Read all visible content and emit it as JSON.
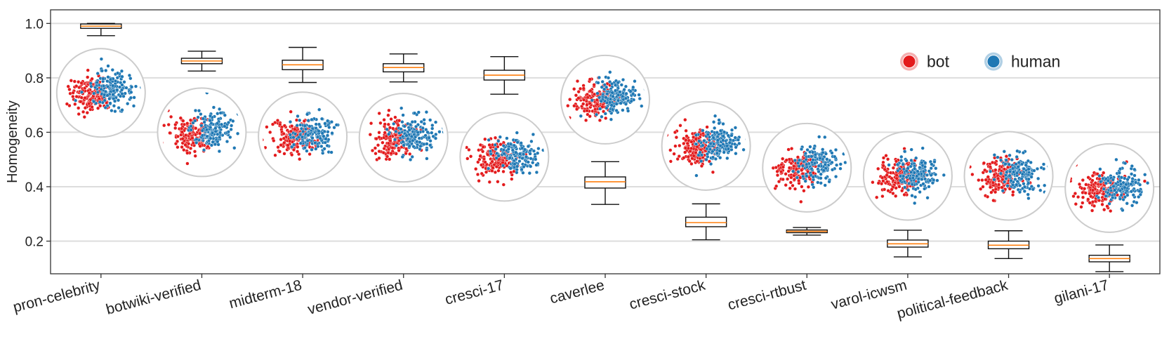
{
  "chart_data": {
    "type": "box",
    "ylabel": "Homogeneity",
    "ylim": [
      0.08,
      1.05
    ],
    "yticks": [
      "0.2",
      "0.4",
      "0.6",
      "0.8",
      "1.0"
    ],
    "ytick_values": [
      0.2,
      0.4,
      0.6,
      0.8,
      1.0
    ],
    "grid": "horizontal",
    "legend": {
      "placement": "top-right",
      "entries": [
        {
          "name": "bot",
          "color": "#e31a1c"
        },
        {
          "name": "human",
          "color": "#1f78b4"
        }
      ]
    },
    "categories": [
      "pron-celebrity",
      "botwiki-verified",
      "midterm-18",
      "vendor-verified",
      "cresci-17",
      "caverlee",
      "cresci-stock",
      "cresci-rtbust",
      "varol-icwsm",
      "political-feedback",
      "gilani-17"
    ],
    "boxes": [
      {
        "whislo": 0.955,
        "q1": 0.982,
        "med": 0.99,
        "q3": 0.998,
        "whishi": 1.0
      },
      {
        "whislo": 0.825,
        "q1": 0.852,
        "med": 0.862,
        "q3": 0.872,
        "whishi": 0.898
      },
      {
        "whislo": 0.783,
        "q1": 0.83,
        "med": 0.848,
        "q3": 0.865,
        "whishi": 0.912
      },
      {
        "whislo": 0.785,
        "q1": 0.822,
        "med": 0.838,
        "q3": 0.852,
        "whishi": 0.888
      },
      {
        "whislo": 0.74,
        "q1": 0.792,
        "med": 0.81,
        "q3": 0.828,
        "whishi": 0.878
      },
      {
        "whislo": 0.335,
        "q1": 0.395,
        "med": 0.418,
        "q3": 0.436,
        "whishi": 0.492
      },
      {
        "whislo": 0.205,
        "q1": 0.253,
        "med": 0.268,
        "q3": 0.288,
        "whishi": 0.337
      },
      {
        "whislo": 0.222,
        "q1": 0.231,
        "med": 0.236,
        "q3": 0.241,
        "whishi": 0.25
      },
      {
        "whislo": 0.142,
        "q1": 0.178,
        "med": 0.19,
        "q3": 0.204,
        "whishi": 0.24
      },
      {
        "whislo": 0.136,
        "q1": 0.172,
        "med": 0.185,
        "q3": 0.2,
        "whishi": 0.238
      },
      {
        "whislo": 0.088,
        "q1": 0.124,
        "med": 0.136,
        "q3": 0.148,
        "whishi": 0.186
      }
    ],
    "embedding_insets": [
      {
        "center_y": 0.745
      },
      {
        "center_y": 0.6
      },
      {
        "center_y": 0.585
      },
      {
        "center_y": 0.58
      },
      {
        "center_y": 0.51
      },
      {
        "center_y": 0.72
      },
      {
        "center_y": 0.55
      },
      {
        "center_y": 0.47
      },
      {
        "center_y": 0.44
      },
      {
        "center_y": 0.44
      },
      {
        "center_y": 0.395
      }
    ],
    "colors": {
      "box_edge": "#111111",
      "median": "#ff7f0e",
      "grid": "#dddddd",
      "inset_circle": "#cccccc"
    }
  }
}
